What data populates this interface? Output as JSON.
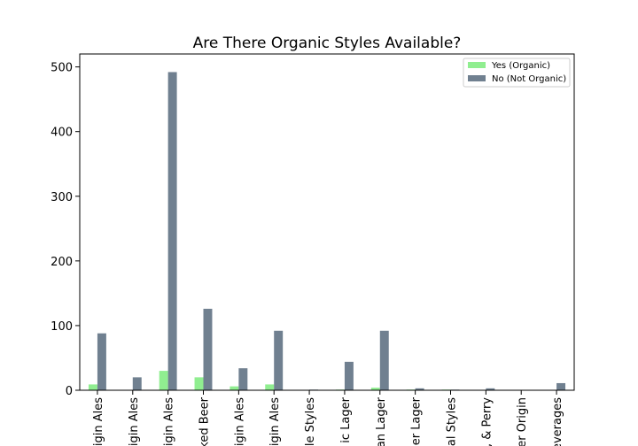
{
  "chart_data": {
    "type": "bar",
    "title": "Are There Organic Styles Available?",
    "xlabel": "",
    "ylabel": "",
    "ylim": [
      0,
      520
    ],
    "yticks": [
      0,
      100,
      200,
      300,
      400,
      500
    ],
    "grid": false,
    "legend_position": "top-right",
    "categories": [
      "igin Ales",
      "igin Ales",
      "igin Ales",
      "ked Beer",
      "igin Ales",
      "igin Ales",
      "le Styles",
      "ic Lager",
      "an Lager",
      "er Lager",
      "al Styles",
      ", & Perry",
      "er Origin",
      "everages"
    ],
    "series": [
      {
        "name": "Yes (Organic)",
        "color": "#90ee90",
        "values": [
          9,
          0,
          30,
          20,
          6,
          9,
          0,
          1,
          4,
          1,
          1,
          0,
          0,
          0
        ]
      },
      {
        "name": "No (Not Organic)",
        "color": "#708090",
        "values": [
          88,
          20,
          492,
          126,
          34,
          92,
          1,
          44,
          92,
          3,
          1,
          3,
          0,
          11
        ]
      }
    ]
  }
}
